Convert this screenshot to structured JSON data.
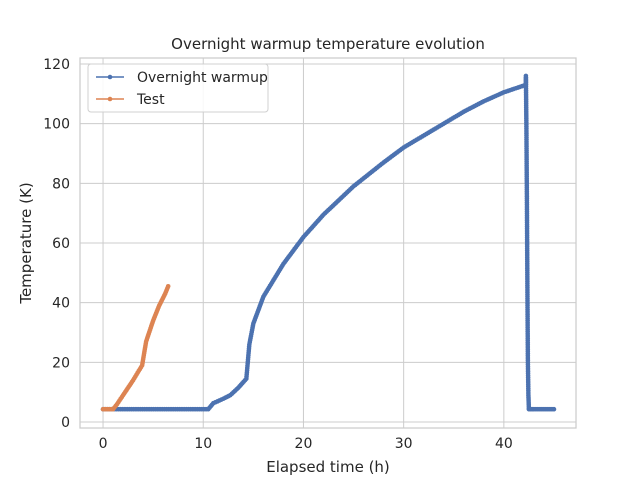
{
  "chart_data": {
    "type": "line",
    "title": "Overnight warmup temperature evolution",
    "xlabel": "Elapsed time (h)",
    "ylabel": "Temperature (K)",
    "xlim": [
      -2.3,
      47.2
    ],
    "ylim": [
      -2,
      122
    ],
    "xticks": [
      0,
      10,
      20,
      30,
      40
    ],
    "yticks": [
      0,
      20,
      40,
      60,
      80,
      100,
      120
    ],
    "xtick_labels": [
      "0",
      "10",
      "20",
      "30",
      "40"
    ],
    "ytick_labels": [
      "0",
      "20",
      "40",
      "60",
      "80",
      "100",
      "120"
    ],
    "grid": true,
    "legend_position": "top-left",
    "marker": "dot",
    "series": [
      {
        "name": "Overnight warmup",
        "color": "#4c72b0",
        "x": [
          0,
          10.5,
          11.0,
          12.0,
          12.7,
          13.5,
          14.3,
          14.6,
          15.0,
          16.0,
          18.0,
          20.0,
          22.0,
          25.0,
          28.0,
          30.0,
          33.0,
          36.0,
          38.0,
          40.0,
          42.2,
          42.2,
          42.25,
          42.3,
          42.35,
          42.4,
          42.45,
          42.5,
          42.5,
          43.0,
          44.0,
          45.0
        ],
        "y": [
          4.3,
          4.3,
          6.3,
          7.8,
          9.0,
          11.5,
          14.5,
          26.0,
          33.0,
          42.0,
          53.0,
          62.0,
          69.5,
          79.0,
          87.0,
          92.0,
          98.0,
          104.0,
          107.5,
          110.5,
          113.0,
          116.0,
          99.0,
          75.0,
          45.0,
          20.0,
          9.0,
          4.5,
          4.3,
          4.3,
          4.3,
          4.3
        ]
      },
      {
        "name": "Test",
        "color": "#dd8452",
        "x": [
          0,
          1.0,
          1.4,
          2.0,
          3.0,
          3.9,
          4.3,
          5.0,
          5.6,
          6.2,
          6.5
        ],
        "y": [
          4.3,
          4.3,
          6.0,
          9.0,
          14.0,
          19.0,
          27.0,
          34.0,
          39.0,
          43.0,
          45.5
        ]
      }
    ]
  }
}
